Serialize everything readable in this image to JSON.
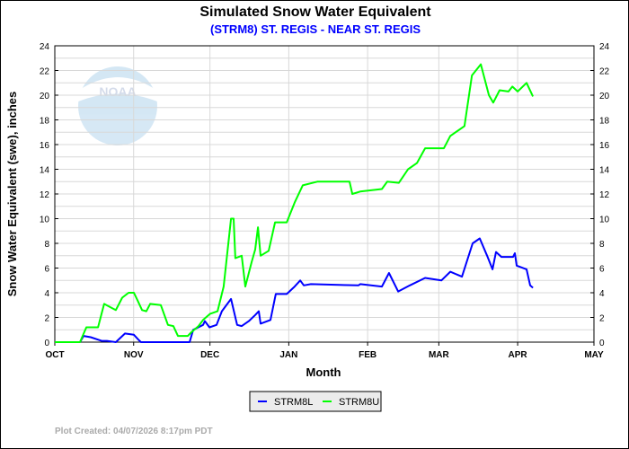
{
  "chart_data": {
    "type": "line",
    "title": "Simulated Snow Water Equivalent",
    "subtitle": "(STRM8) ST. REGIS - NEAR ST. REGIS",
    "xlabel": "Month",
    "ylabel": "Snow Water Equivalent (swe),  inches",
    "x_unit": "days since Oct 1",
    "xlim": [
      0,
      212
    ],
    "ylim": [
      0,
      24
    ],
    "yticks": [
      0,
      2,
      4,
      6,
      8,
      10,
      12,
      14,
      16,
      18,
      20,
      22,
      24
    ],
    "xticks": [
      {
        "label": "OCT",
        "day": 0
      },
      {
        "label": "NOV",
        "day": 31
      },
      {
        "label": "DEC",
        "day": 61
      },
      {
        "label": "JAN",
        "day": 92
      },
      {
        "label": "FEB",
        "day": 123
      },
      {
        "label": "MAR",
        "day": 151
      },
      {
        "label": "APR",
        "day": 182
      },
      {
        "label": "MAY",
        "day": 212
      }
    ],
    "grid": true,
    "legend_position": "bottom-center",
    "series": [
      {
        "name": "STRM8L",
        "color": "#0000ff",
        "points": [
          [
            0,
            0
          ],
          [
            9.9,
            0
          ],
          [
            11.3,
            0.5
          ],
          [
            14.1,
            0.4
          ],
          [
            18.4,
            0.1
          ],
          [
            20.5,
            0.1
          ],
          [
            24,
            0
          ],
          [
            27.6,
            0.7
          ],
          [
            31.1,
            0.6
          ],
          [
            32.9,
            0.2
          ],
          [
            33.9,
            0
          ],
          [
            53,
            0
          ],
          [
            54.4,
            1.0
          ],
          [
            58.3,
            1.4
          ],
          [
            59,
            1.7
          ],
          [
            60.8,
            1.2
          ],
          [
            63.6,
            1.4
          ],
          [
            65.7,
            2.5
          ],
          [
            69.3,
            3.5
          ],
          [
            71.7,
            1.4
          ],
          [
            73.5,
            1.3
          ],
          [
            76.3,
            1.7
          ],
          [
            78.8,
            2.2
          ],
          [
            80.2,
            2.5
          ],
          [
            80.9,
            1.5
          ],
          [
            84.8,
            1.8
          ],
          [
            86.9,
            3.9
          ],
          [
            91.2,
            3.9
          ],
          [
            94.3,
            4.5
          ],
          [
            96.5,
            5.0
          ],
          [
            97.9,
            4.6
          ],
          [
            100.7,
            4.7
          ],
          [
            119.4,
            4.6
          ],
          [
            120.1,
            4.7
          ],
          [
            128.6,
            4.5
          ],
          [
            131.4,
            5.6
          ],
          [
            135,
            4.1
          ],
          [
            139.6,
            4.6
          ],
          [
            145.6,
            5.2
          ],
          [
            152,
            5.0
          ],
          [
            155.5,
            5.7
          ],
          [
            160.1,
            5.3
          ],
          [
            164.3,
            8.0
          ],
          [
            167.1,
            8.4
          ],
          [
            170,
            7.0
          ],
          [
            172.1,
            5.9
          ],
          [
            173.5,
            7.3
          ],
          [
            175.6,
            6.9
          ],
          [
            180.2,
            6.9
          ],
          [
            180.9,
            7.2
          ],
          [
            181.6,
            6.2
          ],
          [
            185.5,
            5.9
          ],
          [
            186.9,
            4.6
          ],
          [
            188,
            4.4
          ]
        ]
      },
      {
        "name": "STRM8U",
        "color": "#00ff00",
        "points": [
          [
            0,
            0
          ],
          [
            9.9,
            0
          ],
          [
            12.4,
            1.2
          ],
          [
            17,
            1.2
          ],
          [
            19.4,
            3.1
          ],
          [
            24,
            2.6
          ],
          [
            26.5,
            3.6
          ],
          [
            29,
            4.0
          ],
          [
            31.1,
            4.0
          ],
          [
            32.5,
            3.4
          ],
          [
            34.3,
            2.6
          ],
          [
            36,
            2.5
          ],
          [
            37.5,
            3.1
          ],
          [
            41.7,
            3.0
          ],
          [
            44.5,
            1.4
          ],
          [
            46.6,
            1.3
          ],
          [
            48.4,
            0.5
          ],
          [
            52.3,
            0.5
          ],
          [
            53.7,
            0.8
          ],
          [
            56.5,
            1.3
          ],
          [
            58.3,
            1.8
          ],
          [
            61.1,
            2.3
          ],
          [
            64,
            2.5
          ],
          [
            66.4,
            4.5
          ],
          [
            69.3,
            10
          ],
          [
            70.3,
            10
          ],
          [
            71,
            6.8
          ],
          [
            73.5,
            7.0
          ],
          [
            74.9,
            4.5
          ],
          [
            77.4,
            6.5
          ],
          [
            78.8,
            7.5
          ],
          [
            79.9,
            9.3
          ],
          [
            80.9,
            7.0
          ],
          [
            84.1,
            7.4
          ],
          [
            86.6,
            9.7
          ],
          [
            91.2,
            9.7
          ],
          [
            94.3,
            11.3
          ],
          [
            97.5,
            12.7
          ],
          [
            103.2,
            13
          ],
          [
            115.9,
            13
          ],
          [
            117,
            12
          ],
          [
            120.1,
            12.2
          ],
          [
            128.6,
            12.4
          ],
          [
            130.7,
            13
          ],
          [
            135.3,
            12.9
          ],
          [
            138.9,
            14
          ],
          [
            142.4,
            14.5
          ],
          [
            145.6,
            15.7
          ],
          [
            153,
            15.7
          ],
          [
            155.5,
            16.7
          ],
          [
            161.1,
            17.5
          ],
          [
            164,
            21.6
          ],
          [
            167.5,
            22.5
          ],
          [
            170.7,
            20
          ],
          [
            172.4,
            19.4
          ],
          [
            174.9,
            20.4
          ],
          [
            178.4,
            20.3
          ],
          [
            179.9,
            20.7
          ],
          [
            182,
            20.3
          ],
          [
            185.5,
            21
          ],
          [
            188,
            19.9
          ]
        ]
      }
    ]
  },
  "logo_text": "NOAA",
  "credit": "Plot Created: 04/07/2026 8:17pm PDT"
}
